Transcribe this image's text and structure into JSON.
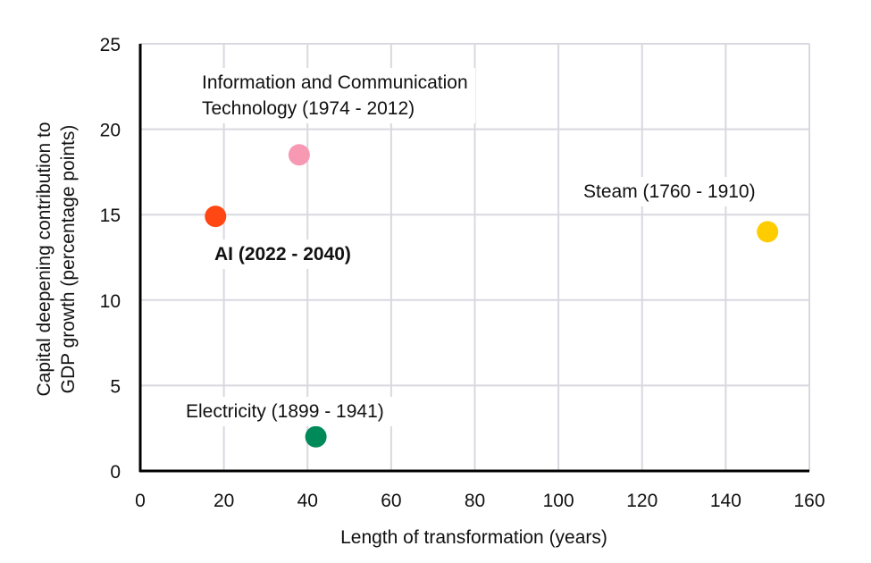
{
  "chart_data": {
    "type": "scatter",
    "title": "",
    "xlabel": "Length of transformation (years)",
    "ylabel_lines": [
      "Capital deepening contribution to",
      "GDP growth (percentage points)"
    ],
    "xlim": [
      0,
      160
    ],
    "ylim": [
      0,
      25
    ],
    "xticks": [
      0,
      20,
      40,
      60,
      80,
      100,
      120,
      140,
      160
    ],
    "yticks": [
      0,
      5,
      10,
      15,
      20,
      25
    ],
    "grid": true,
    "legend": "none",
    "points": [
      {
        "label": "AI (2022 - 2040)",
        "x": 18,
        "y": 14.9,
        "color": "#FF4713",
        "bold": true
      },
      {
        "label": "Information and Communication\nTechnology (1974 - 2012)",
        "x": 38,
        "y": 18.5,
        "color": "#F899B4",
        "bold": false
      },
      {
        "label": "Steam (1760 - 1910)",
        "x": 150,
        "y": 14,
        "color": "#FFCC00",
        "bold": false
      },
      {
        "label": "Electricity (1899 - 1941)",
        "x": 42,
        "y": 2,
        "color": "#008A5A",
        "bold": false
      }
    ]
  }
}
